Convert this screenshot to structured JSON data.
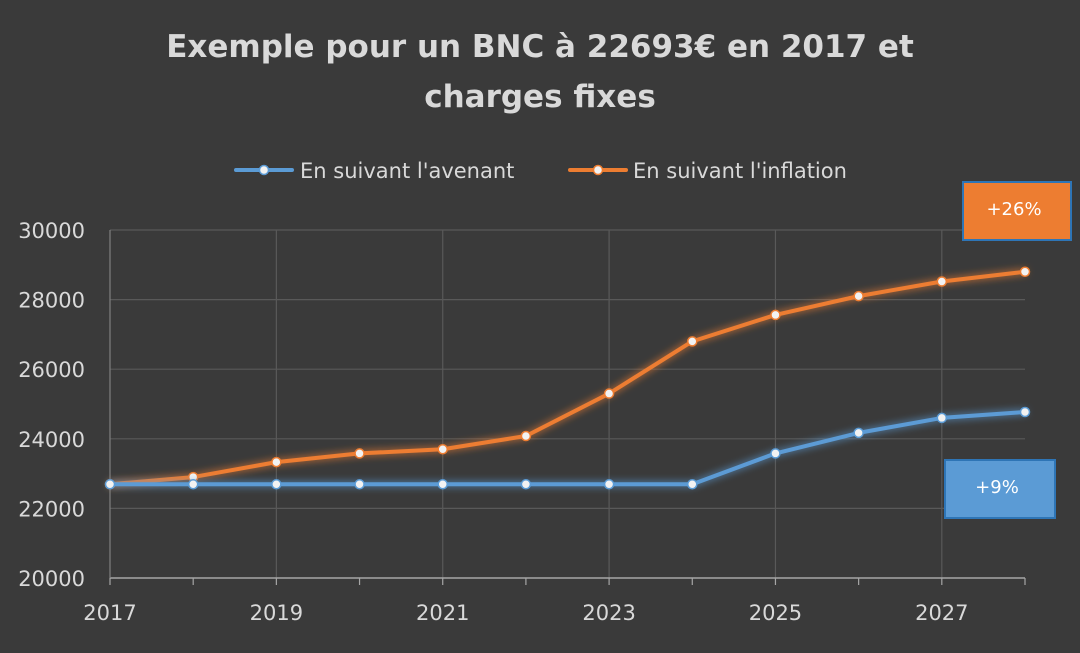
{
  "chart_data": {
    "type": "line",
    "title_lines": [
      "Exemple pour un BNC à 22693€ en 2017 et",
      "charges fixes"
    ],
    "xlabel": "",
    "ylabel": "",
    "x": [
      2017,
      2018,
      2019,
      2020,
      2021,
      2022,
      2023,
      2024,
      2025,
      2026,
      2027,
      2028
    ],
    "x_tick_labels": [
      "2017",
      "2019",
      "2021",
      "2023",
      "2025",
      "2027"
    ],
    "y_tick_labels": [
      "20000",
      "22000",
      "24000",
      "26000",
      "28000",
      "30000"
    ],
    "xlim": [
      2017,
      2028
    ],
    "ylim": [
      20000,
      30000
    ],
    "grid": true,
    "legend_position": "top",
    "series": [
      {
        "name": "En suivant l'avenant",
        "color": "#5b9bd5",
        "values": [
          22693,
          22693,
          22693,
          22693,
          22693,
          22693,
          22693,
          22693,
          23580,
          24170,
          24600,
          24770
        ]
      },
      {
        "name": "En suivant l'inflation",
        "color": "#ed7d31",
        "values": [
          22693,
          22900,
          23330,
          23580,
          23700,
          24080,
          25300,
          26800,
          27560,
          28100,
          28520,
          28800
        ]
      }
    ],
    "annotations": [
      {
        "text": "+26%",
        "color": "#ed7d31",
        "border": "#2e75b6",
        "series": 1
      },
      {
        "text": "+9%",
        "color": "#5b9bd5",
        "border": "#2e75b6",
        "series": 0
      }
    ]
  }
}
